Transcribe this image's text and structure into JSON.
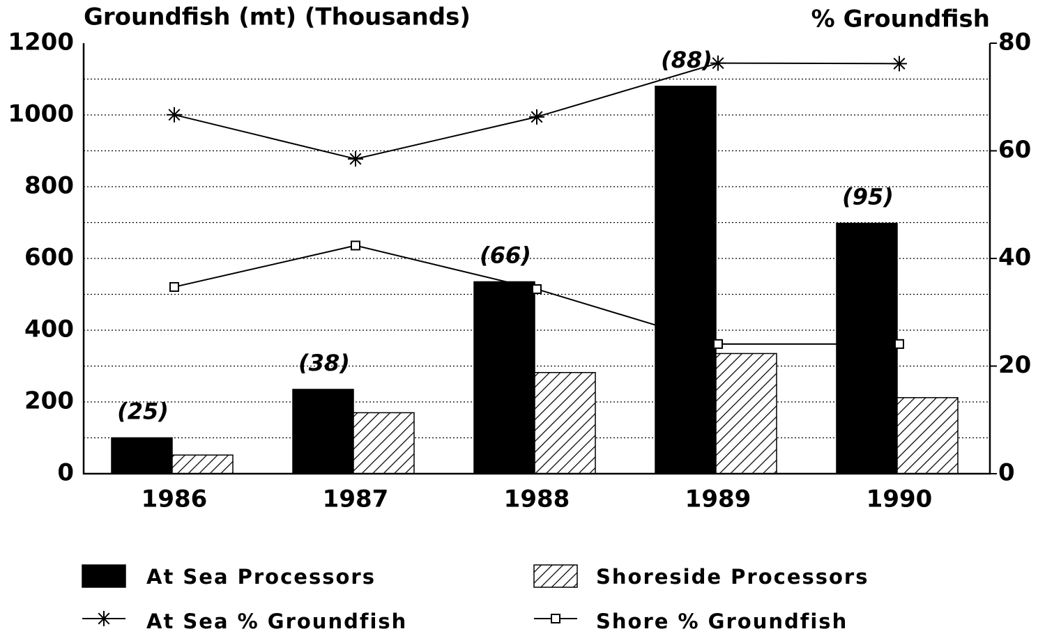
{
  "chart_data": {
    "type": "bar",
    "title": "Groundfish (mt) (Thousands)",
    "y2_title": "% Groundfish",
    "categories": [
      "1986",
      "1987",
      "1988",
      "1989",
      "1990"
    ],
    "series": [
      {
        "name": "At Sea Processors",
        "type": "bar",
        "color": "#000000",
        "values": [
          100,
          235,
          535,
          1080,
          698
        ]
      },
      {
        "name": "Shoreside Processors",
        "type": "bar",
        "color": "#000000",
        "pattern": "hatch",
        "values": [
          52,
          170,
          282,
          335,
          212
        ]
      },
      {
        "name": "At Sea % Groundfish",
        "type": "line",
        "axis": "y2",
        "marker": "asterisk",
        "color": "#000000",
        "values": [
          66.7,
          58.5,
          66.3,
          76.3,
          76.2
        ]
      },
      {
        "name": "Shore % Groundfish",
        "type": "line",
        "axis": "y2",
        "marker": "square",
        "color": "#000000",
        "values": [
          34.7,
          42.4,
          34.3,
          24.1,
          24.1
        ]
      }
    ],
    "annotations": [
      "(25)",
      "(38)",
      "(66)",
      "(88)",
      "(95)"
    ],
    "ylim": [
      0,
      1200
    ],
    "yticks": [
      0,
      200,
      400,
      600,
      800,
      1000,
      1200
    ],
    "yminor": [
      100,
      300,
      500,
      700,
      900,
      1100
    ],
    "y2lim": [
      0,
      80
    ],
    "y2ticks": [
      0,
      20,
      40,
      60,
      80
    ],
    "grid": true
  }
}
